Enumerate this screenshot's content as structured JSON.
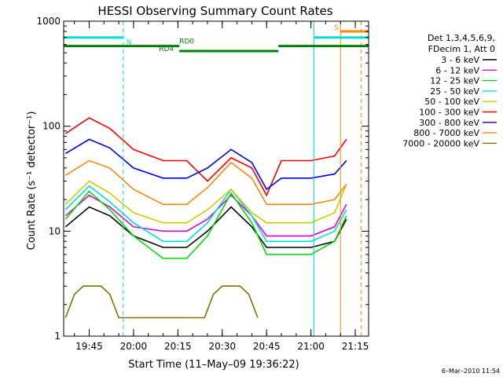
{
  "chart_data": {
    "type": "line",
    "title": "HESSI Observing Summary Count Rates",
    "ylabel": "Count Rate (s⁻¹ detector⁻¹)",
    "xlabel": "Start Time (11–May–09 19:36:22)",
    "y_scale": "log",
    "ylim": [
      1,
      1000
    ],
    "y_ticks": [
      {
        "value": 1,
        "label": "1"
      },
      {
        "value": 10,
        "label": "10"
      },
      {
        "value": 100,
        "label": "100"
      },
      {
        "value": 1000,
        "label": "1000"
      }
    ],
    "xlim": [
      "19:36:22",
      "21:19:30"
    ],
    "x_ticks": [
      {
        "value": "19:45",
        "label": "19:45"
      },
      {
        "value": "20:00",
        "label": "20:00"
      },
      {
        "value": "20:15",
        "label": "20:15"
      },
      {
        "value": "20:30",
        "label": "20:30"
      },
      {
        "value": "20:45",
        "label": "20:45"
      },
      {
        "value": "21:00",
        "label": "21:00"
      },
      {
        "value": "21:15",
        "label": "21:15"
      }
    ],
    "legend": {
      "placement": "right",
      "header": [
        "Det 1,3,4,5,6,9,",
        "FDecim 1, Att 0"
      ]
    },
    "series": [
      {
        "name": "3 - 6 keV",
        "color": "#000000",
        "x": [
          "19:37",
          "19:45",
          "19:52",
          "20:00",
          "20:10",
          "20:18",
          "20:25",
          "20:33",
          "20:40",
          "20:45",
          "20:50",
          "21:00",
          "21:08",
          "21:12"
        ],
        "values": [
          11,
          17,
          14,
          9,
          7,
          7,
          10,
          17,
          11,
          7,
          7,
          7,
          8,
          13
        ]
      },
      {
        "name": "6 - 12 keV",
        "color": "#dd00dd",
        "x": [
          "19:37",
          "19:45",
          "19:52",
          "20:00",
          "20:10",
          "20:18",
          "20:25",
          "20:33",
          "20:40",
          "20:45",
          "20:50",
          "21:00",
          "21:08",
          "21:12"
        ],
        "values": [
          14,
          22,
          17,
          11,
          10,
          10,
          13,
          22,
          14,
          9,
          9,
          9,
          11,
          18
        ]
      },
      {
        "name": "12 - 25 keV",
        "color": "#00dd00",
        "x": [
          "19:37",
          "19:45",
          "19:52",
          "20:00",
          "20:10",
          "20:18",
          "20:25",
          "20:33",
          "20:40",
          "20:45",
          "20:50",
          "21:00",
          "21:08",
          "21:12"
        ],
        "values": [
          13,
          24,
          16,
          9,
          5.5,
          5.5,
          9,
          23,
          12,
          6,
          6,
          6,
          8,
          14
        ]
      },
      {
        "name": "25 - 50 keV",
        "color": "#00dddd",
        "x": [
          "19:37",
          "19:45",
          "19:52",
          "20:00",
          "20:10",
          "20:18",
          "20:25",
          "20:33",
          "20:40",
          "20:45",
          "20:50",
          "21:00",
          "21:08",
          "21:12"
        ],
        "values": [
          16,
          27,
          19,
          12,
          8,
          8,
          12,
          25,
          14,
          8,
          8,
          8,
          10,
          16
        ]
      },
      {
        "name": "50 - 100 keV",
        "color": "#cccc00",
        "x": [
          "19:37",
          "19:45",
          "19:52",
          "20:00",
          "20:10",
          "20:18",
          "20:25",
          "20:33",
          "20:40",
          "20:45",
          "20:50",
          "21:00",
          "21:08",
          "21:12"
        ],
        "values": [
          18,
          30,
          23,
          15,
          12,
          12,
          16,
          25,
          15,
          12,
          12,
          12,
          15,
          28
        ]
      },
      {
        "name": "100 - 300 keV",
        "color": "#ff0000",
        "x": [
          "19:37",
          "19:45",
          "19:52",
          "20:00",
          "20:10",
          "20:18",
          "20:25",
          "20:33",
          "20:40",
          "20:45",
          "20:50",
          "21:00",
          "21:08",
          "21:12"
        ],
        "values": [
          85,
          120,
          95,
          60,
          47,
          47,
          30,
          50,
          40,
          22,
          47,
          47,
          52,
          75
        ]
      },
      {
        "name": "300 - 800 keV",
        "color": "#0000ee",
        "x": [
          "19:37",
          "19:45",
          "19:52",
          "20:00",
          "20:10",
          "20:18",
          "20:25",
          "20:33",
          "20:40",
          "20:45",
          "20:50",
          "21:00",
          "21:08",
          "21:12"
        ],
        "values": [
          55,
          75,
          62,
          40,
          32,
          32,
          40,
          60,
          45,
          25,
          32,
          32,
          35,
          47
        ]
      },
      {
        "name": "800 - 7000 keV",
        "color": "#ff8800",
        "x": [
          "19:37",
          "19:45",
          "19:52",
          "20:00",
          "20:10",
          "20:18",
          "20:25",
          "20:33",
          "20:40",
          "20:45",
          "20:50",
          "21:00",
          "21:08",
          "21:12"
        ],
        "values": [
          34,
          47,
          40,
          25,
          18,
          18,
          26,
          45,
          32,
          18,
          18,
          18,
          20,
          28
        ]
      },
      {
        "name": "7000 - 20000 keV",
        "color": "#807000",
        "x": [
          "19:37",
          "19:40",
          "19:43",
          "19:46",
          "19:49",
          "19:52",
          "19:55",
          "20:24",
          "20:27",
          "20:30",
          "20:33",
          "20:36",
          "20:39",
          "20:42"
        ],
        "values": [
          1.5,
          2.5,
          3,
          3,
          3,
          2.5,
          1.5,
          1.5,
          2.5,
          3,
          3,
          3,
          2.5,
          1.5
        ]
      }
    ],
    "flags": [
      {
        "label": "N",
        "color": "#00dddd",
        "y": 700,
        "segments": [
          [
            "19:36:22",
            "19:56:30"
          ],
          [
            "21:01:00",
            "21:19:30"
          ]
        ]
      },
      {
        "label": "S",
        "color": "#ff8800",
        "y": 800,
        "segments": [
          [
            "21:10:00",
            "21:19:30"
          ]
        ]
      },
      {
        "label": "RD0",
        "color": "#008000",
        "y": 580,
        "segments": [
          [
            "19:36:22",
            "20:15:30"
          ],
          [
            "20:49:00",
            "21:19:30"
          ]
        ]
      },
      {
        "label": "RD4",
        "color": "#008000",
        "y": 520,
        "segments": [
          [
            "20:15:30",
            "20:49:00"
          ]
        ]
      }
    ],
    "vertical_lines": [
      {
        "x": "19:56:30",
        "color": "#00dddd",
        "style": "dashed"
      },
      {
        "x": "21:01:00",
        "color": "#00dddd",
        "style": "solid"
      },
      {
        "x": "21:10:00",
        "color": "#ff8800",
        "style": "solid"
      },
      {
        "x": "21:17:00",
        "color": "#ff8800",
        "style": "dashed"
      }
    ]
  },
  "footer": {
    "date_stamp": "6–Mar–2010 11:54"
  }
}
